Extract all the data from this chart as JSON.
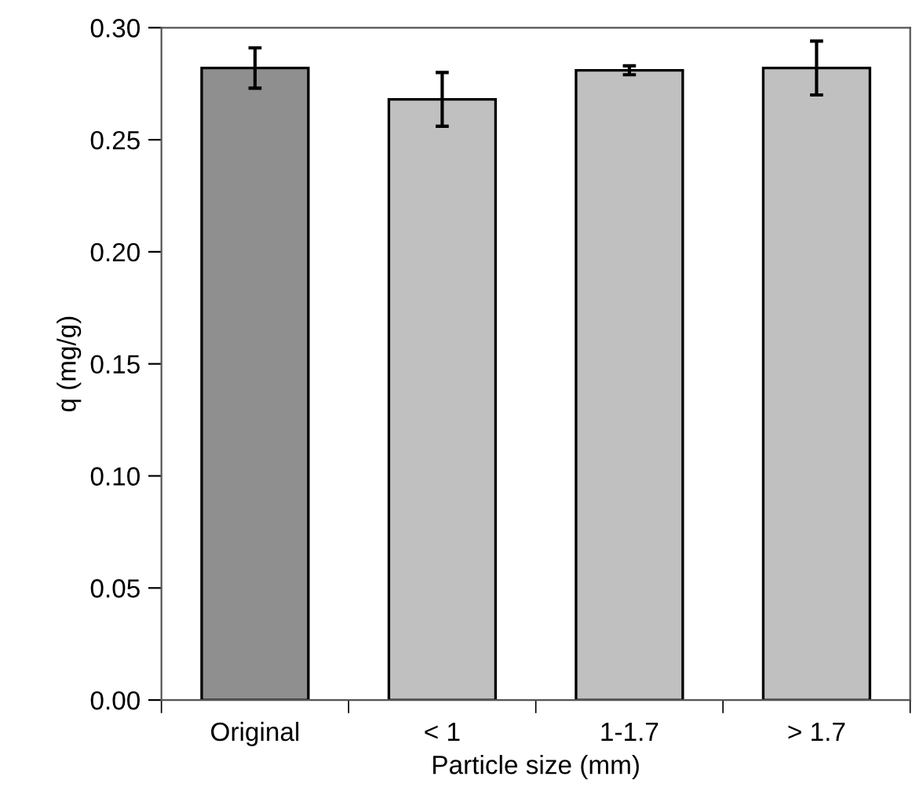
{
  "chart_data": {
    "type": "bar",
    "xlabel": "Particle size (mm)",
    "ylabel": "q (mg/g)",
    "categories": [
      "Original",
      "< 1",
      "1-1.7",
      "> 1.7"
    ],
    "values": [
      0.282,
      0.268,
      0.281,
      0.282
    ],
    "errors": [
      0.009,
      0.012,
      0.002,
      0.012
    ],
    "colors": [
      "#8f8f8f",
      "#c0c0c0",
      "#c0c0c0",
      "#c0c0c0"
    ],
    "ylim": [
      0,
      0.3
    ],
    "yticks": [
      {
        "value": 0,
        "label": "0.00"
      },
      {
        "value": 0.05,
        "label": "0.05"
      },
      {
        "value": 0.1,
        "label": "0.10"
      },
      {
        "value": 0.15,
        "label": "0.15"
      },
      {
        "value": 0.2,
        "label": "0.20"
      },
      {
        "value": 0.25,
        "label": "0.25"
      },
      {
        "value": 0.3,
        "label": "0.30"
      }
    ],
    "grid": false
  }
}
